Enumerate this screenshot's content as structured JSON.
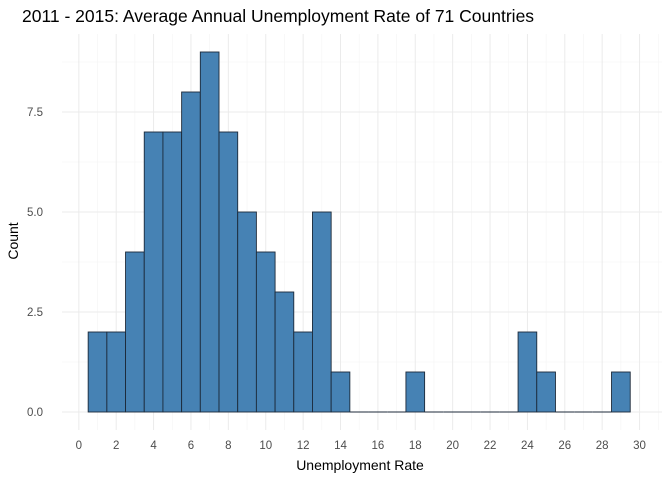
{
  "chart_data": {
    "type": "bar",
    "title": "2011 - 2015: Average Annual Unemployment Rate of 71 Countries",
    "xlabel": "Unemployment Rate",
    "ylabel": "Count",
    "bin_width": 1,
    "bins": [
      {
        "x0": 0.5,
        "x1": 1.5,
        "count": 2
      },
      {
        "x0": 1.5,
        "x1": 2.5,
        "count": 2
      },
      {
        "x0": 2.5,
        "x1": 3.5,
        "count": 4
      },
      {
        "x0": 3.5,
        "x1": 4.5,
        "count": 7
      },
      {
        "x0": 4.5,
        "x1": 5.5,
        "count": 7
      },
      {
        "x0": 5.5,
        "x1": 6.5,
        "count": 8
      },
      {
        "x0": 6.5,
        "x1": 7.5,
        "count": 9
      },
      {
        "x0": 7.5,
        "x1": 8.5,
        "count": 7
      },
      {
        "x0": 8.5,
        "x1": 9.5,
        "count": 5
      },
      {
        "x0": 9.5,
        "x1": 10.5,
        "count": 4
      },
      {
        "x0": 10.5,
        "x1": 11.5,
        "count": 3
      },
      {
        "x0": 11.5,
        "x1": 12.5,
        "count": 2
      },
      {
        "x0": 12.5,
        "x1": 13.5,
        "count": 5
      },
      {
        "x0": 13.5,
        "x1": 14.5,
        "count": 1
      },
      {
        "x0": 14.5,
        "x1": 15.5,
        "count": 0
      },
      {
        "x0": 15.5,
        "x1": 16.5,
        "count": 0
      },
      {
        "x0": 16.5,
        "x1": 17.5,
        "count": 0
      },
      {
        "x0": 17.5,
        "x1": 18.5,
        "count": 1
      },
      {
        "x0": 18.5,
        "x1": 19.5,
        "count": 0
      },
      {
        "x0": 19.5,
        "x1": 20.5,
        "count": 0
      },
      {
        "x0": 20.5,
        "x1": 21.5,
        "count": 0
      },
      {
        "x0": 21.5,
        "x1": 22.5,
        "count": 0
      },
      {
        "x0": 22.5,
        "x1": 23.5,
        "count": 0
      },
      {
        "x0": 23.5,
        "x1": 24.5,
        "count": 2
      },
      {
        "x0": 24.5,
        "x1": 25.5,
        "count": 1
      },
      {
        "x0": 25.5,
        "x1": 26.5,
        "count": 0
      },
      {
        "x0": 26.5,
        "x1": 27.5,
        "count": 0
      },
      {
        "x0": 27.5,
        "x1": 28.5,
        "count": 0
      },
      {
        "x0": 28.5,
        "x1": 29.5,
        "count": 1
      }
    ],
    "xlim": [
      -0.9,
      31.2
    ],
    "ylim": [
      -0.45,
      9.45
    ],
    "x_ticks": [
      "0",
      "2",
      "4",
      "6",
      "8",
      "10",
      "12",
      "14",
      "16",
      "18",
      "20",
      "22",
      "24",
      "26",
      "28",
      "30"
    ],
    "y_ticks": [
      "0.0",
      "2.5",
      "5.0",
      "7.5"
    ],
    "grid": true,
    "legend": "none",
    "colors": {
      "bar_fill": "#4682b4",
      "bar_outline": "#1c2a3a",
      "grid_major": "#ebebeb",
      "grid_minor": "#f4f4f4"
    }
  }
}
